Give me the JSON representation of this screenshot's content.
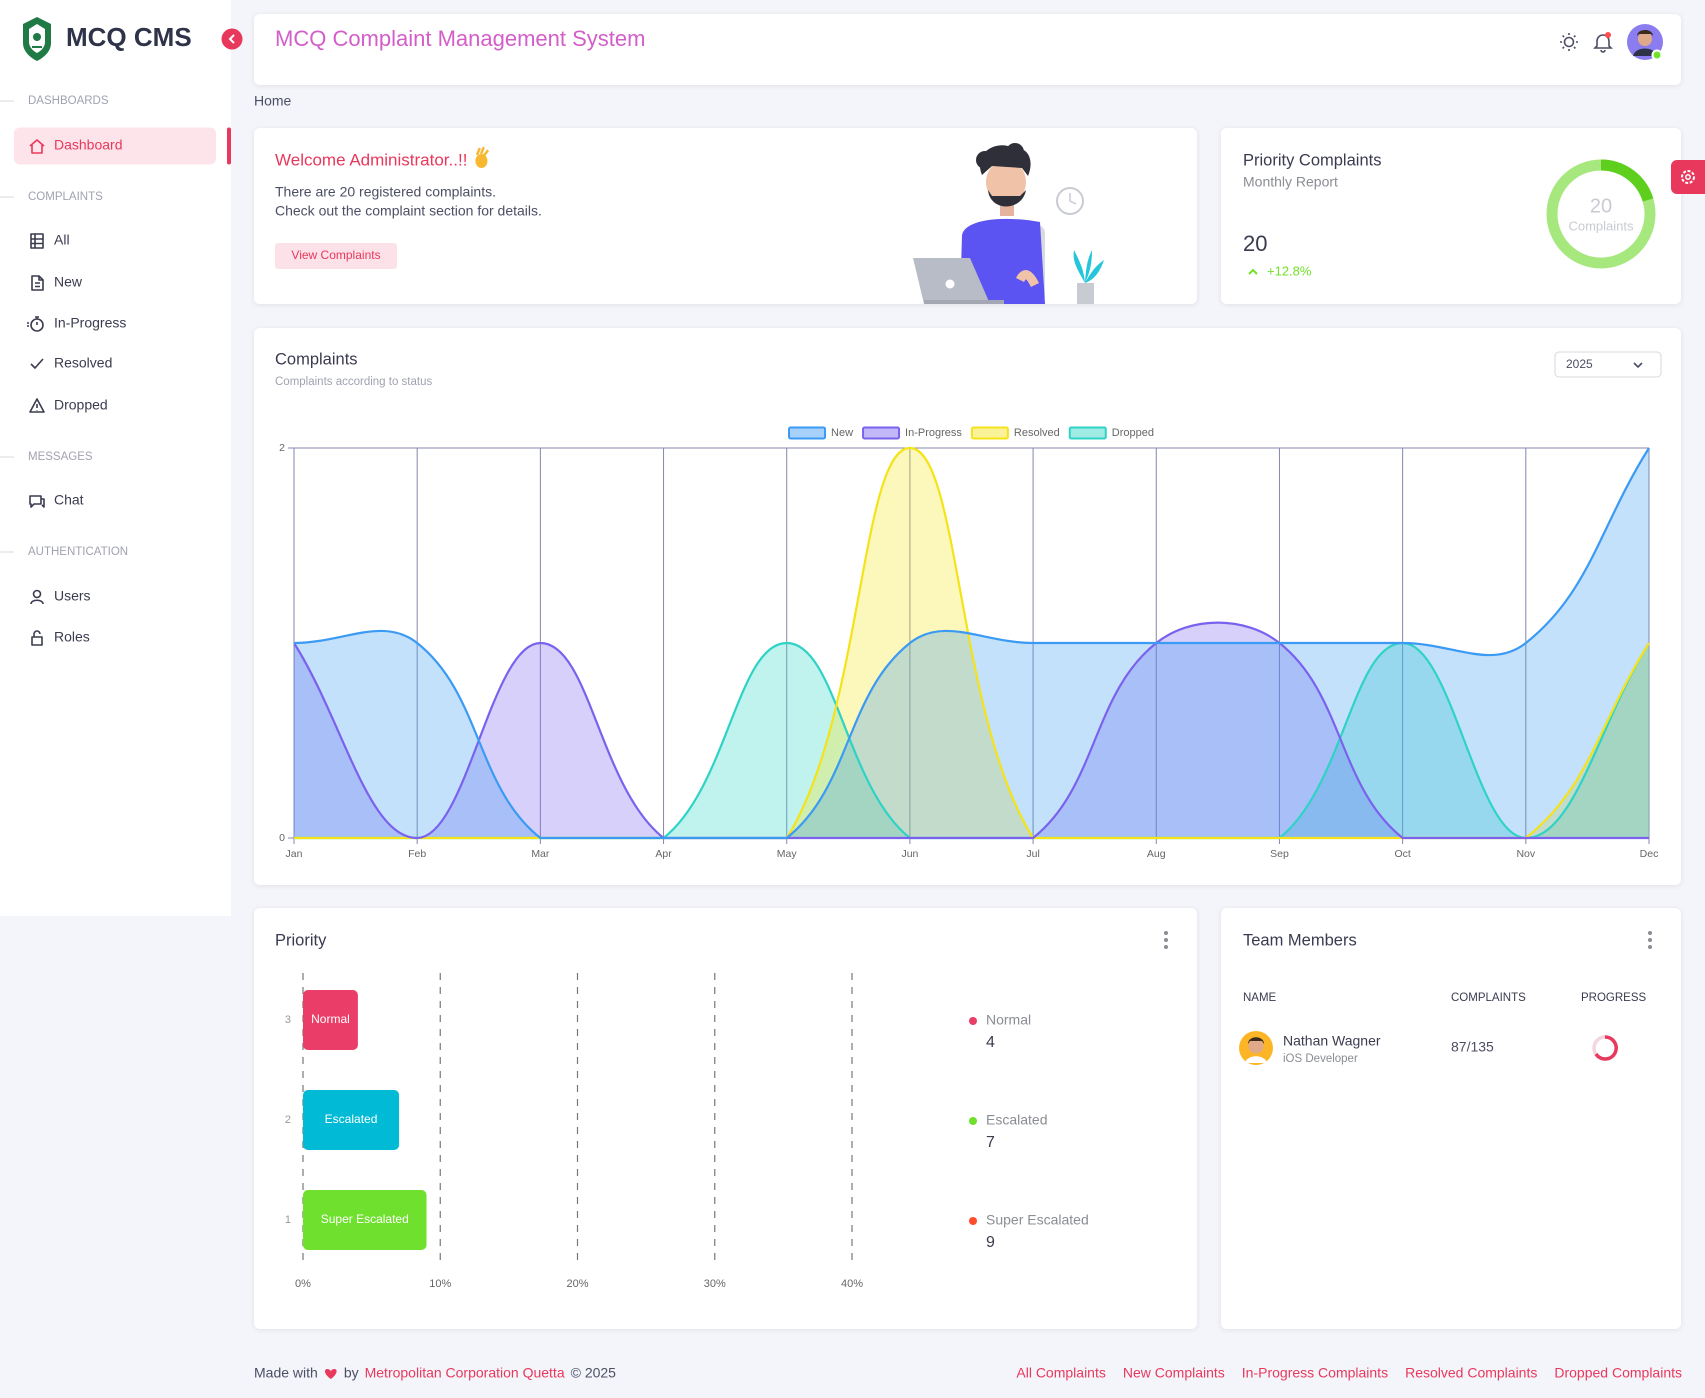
{
  "sidebar": {
    "brand": "MCQ CMS",
    "sections": [
      {
        "title": "DASHBOARDS",
        "items": [
          "Dashboard"
        ]
      },
      {
        "title": "COMPLAINTS",
        "items": [
          "All",
          "New",
          "In-Progress",
          "Resolved",
          "Dropped"
        ]
      },
      {
        "title": "MESSAGES",
        "items": [
          "Chat"
        ]
      },
      {
        "title": "AUTHENTICATION",
        "items": [
          "Users",
          "Roles"
        ]
      }
    ]
  },
  "header": {
    "title": "MCQ Complaint Management System"
  },
  "breadcrumb": "Home",
  "welcome": {
    "title": "Welcome Administrator..!!",
    "lines": [
      "There are 20 registered complaints.",
      "Check out the complaint section for details."
    ],
    "button": "View Complaints"
  },
  "priority_card": {
    "title": "Priority Complaints",
    "subtitle": "Monthly Report",
    "value": 20,
    "change": "+12.8%",
    "donut_value": 20,
    "donut_label": "Complaints"
  },
  "complaints_filter": "2025",
  "chart_data": [
    {
      "type": "line",
      "fill": true,
      "title": "Complaints",
      "subtitle": "Complaints according to status",
      "categories": [
        "Jan",
        "Feb",
        "Mar",
        "Apr",
        "May",
        "Jun",
        "Jul",
        "Aug",
        "Sep",
        "Oct",
        "Nov",
        "Dec"
      ],
      "series": [
        {
          "name": "New",
          "color": "#3b9af3",
          "values": [
            1,
            1,
            0,
            0,
            0,
            1,
            1,
            1,
            1,
            1,
            1,
            2
          ]
        },
        {
          "name": "In-Progress",
          "color": "#7b62ee",
          "values": [
            1,
            0,
            1,
            0,
            0,
            0,
            0,
            1,
            1,
            0,
            0,
            0
          ]
        },
        {
          "name": "Resolved",
          "color": "#f5e31a",
          "values": [
            0,
            0,
            0,
            0,
            0,
            2,
            0,
            0,
            0,
            0,
            0,
            1
          ]
        },
        {
          "name": "Dropped",
          "color": "#2fd3c6",
          "values": [
            0,
            0,
            0,
            0,
            1,
            0,
            0,
            0,
            0,
            1,
            0,
            1
          ]
        }
      ],
      "ylim": [
        0,
        2
      ],
      "yticks": [
        0,
        2
      ],
      "grid": true,
      "legend": "top"
    },
    {
      "type": "bar",
      "orientation": "horizontal",
      "title": "Priority",
      "categories": [
        "Normal",
        "Escalated",
        "Super Escalated"
      ],
      "values": [
        4,
        7,
        9
      ],
      "colors": [
        "#ea3d68",
        "#00bad6",
        "#6fe02d"
      ],
      "legend_colors": [
        "#ea3d68",
        "#6fe02d",
        "#ff4c2b"
      ],
      "xlim": [
        0,
        40
      ],
      "xticks": [
        {
          "value": 0,
          "label": "0%"
        },
        {
          "value": 10,
          "label": "10%"
        },
        {
          "value": 20,
          "label": "20%"
        },
        {
          "value": 30,
          "label": "30%"
        },
        {
          "value": 40,
          "label": "40%"
        }
      ],
      "ylim": [
        0.5,
        3.5
      ],
      "yticks": [
        3,
        2,
        1
      ],
      "grid": true,
      "legend": "right"
    }
  ],
  "team": {
    "title": "Team Members",
    "columns": [
      "NAME",
      "COMPLAINTS",
      "PROGRESS"
    ],
    "rows": [
      {
        "name": "Nathan Wagner",
        "role": "iOS Developer",
        "complaints": "87/135"
      }
    ]
  },
  "footer": {
    "made_with": "Made with",
    "by": "by",
    "org": "Metropolitan Corporation Quetta",
    "copyright": "© 2025",
    "links": [
      "All Complaints",
      "New Complaints",
      "In-Progress Complaints",
      "Resolved Complaints",
      "Dropped Complaints"
    ]
  }
}
